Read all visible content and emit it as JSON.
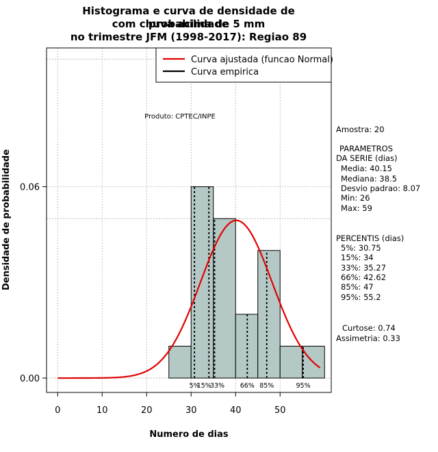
{
  "title_lines": [
    "Histograma e curva de densidade de probabilidade",
    "com chuva acima de 5 mm",
    "no trimestre JFM (1998-2017): Regiao 89"
  ],
  "xlabel": "Numero de dias",
  "ylabel": "Densidade de probabilidade",
  "produto": "Produto: CPTEC/INPE",
  "legend": {
    "normal": "Curva ajustada (funcao Normal)",
    "empirica": "Curva empirica"
  },
  "stats": {
    "amostra": "Amostra: 20",
    "params_header_1": "PARAMETROS",
    "params_header_2": "DA SERIE (dias)",
    "media": "Media: 40.15",
    "mediana": "Mediana: 38.5",
    "desvio": "Desvio padrao: 8.07",
    "min": "Min: 26",
    "max": "Max: 59",
    "perc_header": "PERCENTIS (dias)",
    "p5": "5%: 30.75",
    "p15": "15%: 34",
    "p33": "33%: 35.27",
    "p66": "66%: 42.62",
    "p85": "85%: 47",
    "p95": "95%: 55.2",
    "curtose": "Curtose: 0.74",
    "assimetria": "Assimetria: 0.33"
  },
  "colors": {
    "bar_fill": "#b4c8c6",
    "normal_curve": "#e00000",
    "empirical_curve": "#000000"
  },
  "chart_data": {
    "type": "bar",
    "histogram": {
      "bin_edges": [
        25,
        30,
        35,
        40,
        45,
        50,
        55,
        60
      ],
      "densities": [
        0.01,
        0.06,
        0.05,
        0.02,
        0.04,
        0.01,
        0.01
      ]
    },
    "normal_fit": {
      "mean": 40.15,
      "sd": 8.07,
      "x_range": [
        0,
        59
      ]
    },
    "percentiles": [
      {
        "label": "5%",
        "value": 30.75
      },
      {
        "label": "15%",
        "value": 34
      },
      {
        "label": "33%",
        "value": 35.27
      },
      {
        "label": "66%",
        "value": 42.62
      },
      {
        "label": "85%",
        "value": 47
      },
      {
        "label": "95%",
        "value": 55.2
      }
    ],
    "x_ticks": [
      0,
      10,
      20,
      30,
      40,
      50
    ],
    "y_ticks": [
      "0.00",
      "0.06"
    ],
    "xlim": [
      -2.5,
      61.5
    ],
    "ylim": [
      -0.0045,
      0.1035
    ],
    "grid": true,
    "legend_position": "top-right"
  }
}
